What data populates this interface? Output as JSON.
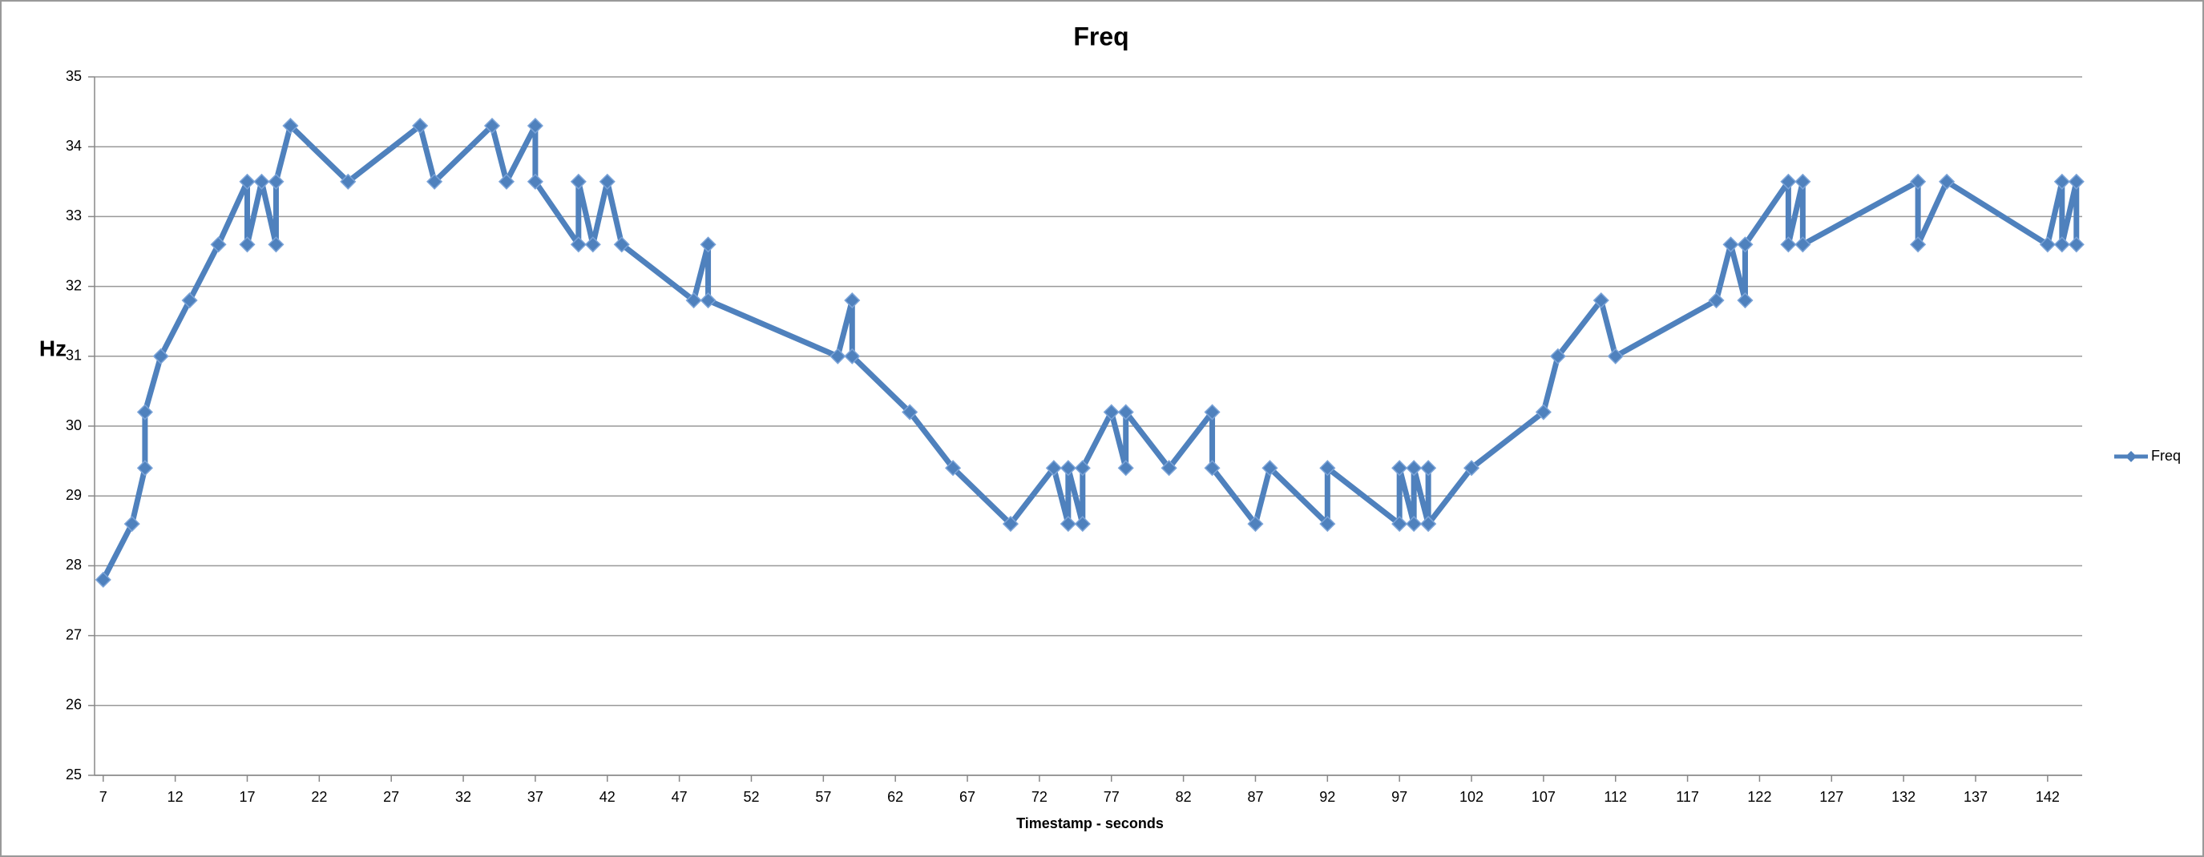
{
  "chart_data": {
    "type": "line",
    "title": "Freq",
    "x_label": "Timestamp - seconds",
    "y_label": "Hz",
    "x": [
      7,
      9,
      9.9,
      9.9,
      11,
      13,
      15,
      17,
      17,
      18,
      19,
      19,
      20,
      24,
      29,
      30,
      34,
      35,
      37,
      37,
      40,
      40,
      41,
      42,
      43,
      48,
      49,
      49,
      58,
      59,
      59,
      63,
      66,
      70,
      73,
      74,
      74,
      75,
      75,
      77,
      78,
      78,
      81,
      84,
      84,
      87,
      88,
      92,
      92,
      97,
      97,
      98,
      98,
      99,
      99,
      99,
      102,
      107,
      108,
      111,
      112,
      119,
      120,
      121,
      121,
      124,
      124,
      125,
      125,
      133,
      133,
      135,
      142,
      143,
      143,
      144,
      144
    ],
    "series": [
      {
        "name": "Freq",
        "color": "#4f81bd",
        "values": [
          27.8,
          28.6,
          29.4,
          30.2,
          31.0,
          31.8,
          32.6,
          33.5,
          32.6,
          33.5,
          32.6,
          33.5,
          34.3,
          33.5,
          34.3,
          33.5,
          34.3,
          33.5,
          34.3,
          33.5,
          32.6,
          33.5,
          32.6,
          33.5,
          32.6,
          31.8,
          32.6,
          31.8,
          31.0,
          31.8,
          31.0,
          30.2,
          29.4,
          28.6,
          29.4,
          28.6,
          29.4,
          28.6,
          29.4,
          30.2,
          29.4,
          30.2,
          29.4,
          30.2,
          29.4,
          28.6,
          29.4,
          28.6,
          29.4,
          28.6,
          29.4,
          28.6,
          29.4,
          28.6,
          29.4,
          28.6,
          29.4,
          30.2,
          31.0,
          31.8,
          31.0,
          31.8,
          32.6,
          31.8,
          32.6,
          33.5,
          32.6,
          33.5,
          32.6,
          33.5,
          32.6,
          33.5,
          32.6,
          33.5,
          32.6,
          33.5,
          32.6
        ]
      }
    ],
    "xlim": [
      6.4,
      144.4
    ],
    "xticks": [
      7,
      12,
      17,
      22,
      27,
      32,
      37,
      42,
      47,
      52,
      57,
      62,
      67,
      72,
      77,
      82,
      87,
      92,
      97,
      102,
      107,
      112,
      117,
      122,
      127,
      132,
      137,
      142
    ],
    "ylim": [
      25,
      35
    ],
    "yticks": [
      25,
      26,
      27,
      28,
      29,
      30,
      31,
      32,
      33,
      34,
      35
    ],
    "grid": true,
    "legend": "right"
  }
}
